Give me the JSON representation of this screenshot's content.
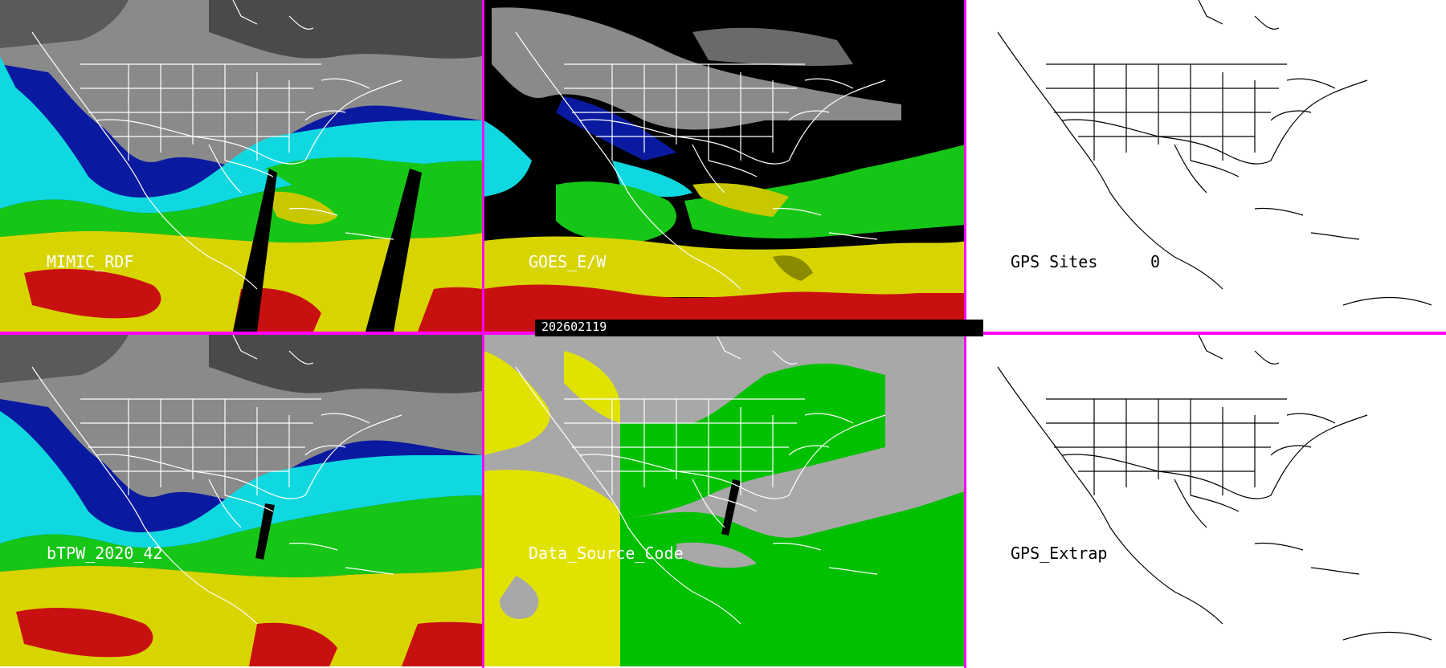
{
  "panels": [
    {
      "id": "mimic",
      "label": "MIMIC_RDF"
    },
    {
      "id": "goes",
      "label": "GOES_E/W"
    },
    {
      "id": "gps",
      "label": "GPS Sites",
      "count": "0"
    },
    {
      "id": "btpw",
      "label": "bTPW_2020_42"
    },
    {
      "id": "dsc",
      "label": "Data_Source_Code"
    },
    {
      "id": "gpsx",
      "label": "GPS_Extrap"
    }
  ],
  "timestamp": "202602119",
  "colors": {
    "separator": "#ff00ff",
    "tpw_dry_gray": "#8a8a8a",
    "tpw_blue": "#0a1aa0",
    "tpw_cyan": "#10d8e0",
    "tpw_green": "#16c616",
    "tpw_yellow": "#d8d400",
    "tpw_red": "#c81010",
    "source_gray": "#a8a8a8",
    "source_yellow": "#e2e200",
    "source_green": "#00c000"
  }
}
